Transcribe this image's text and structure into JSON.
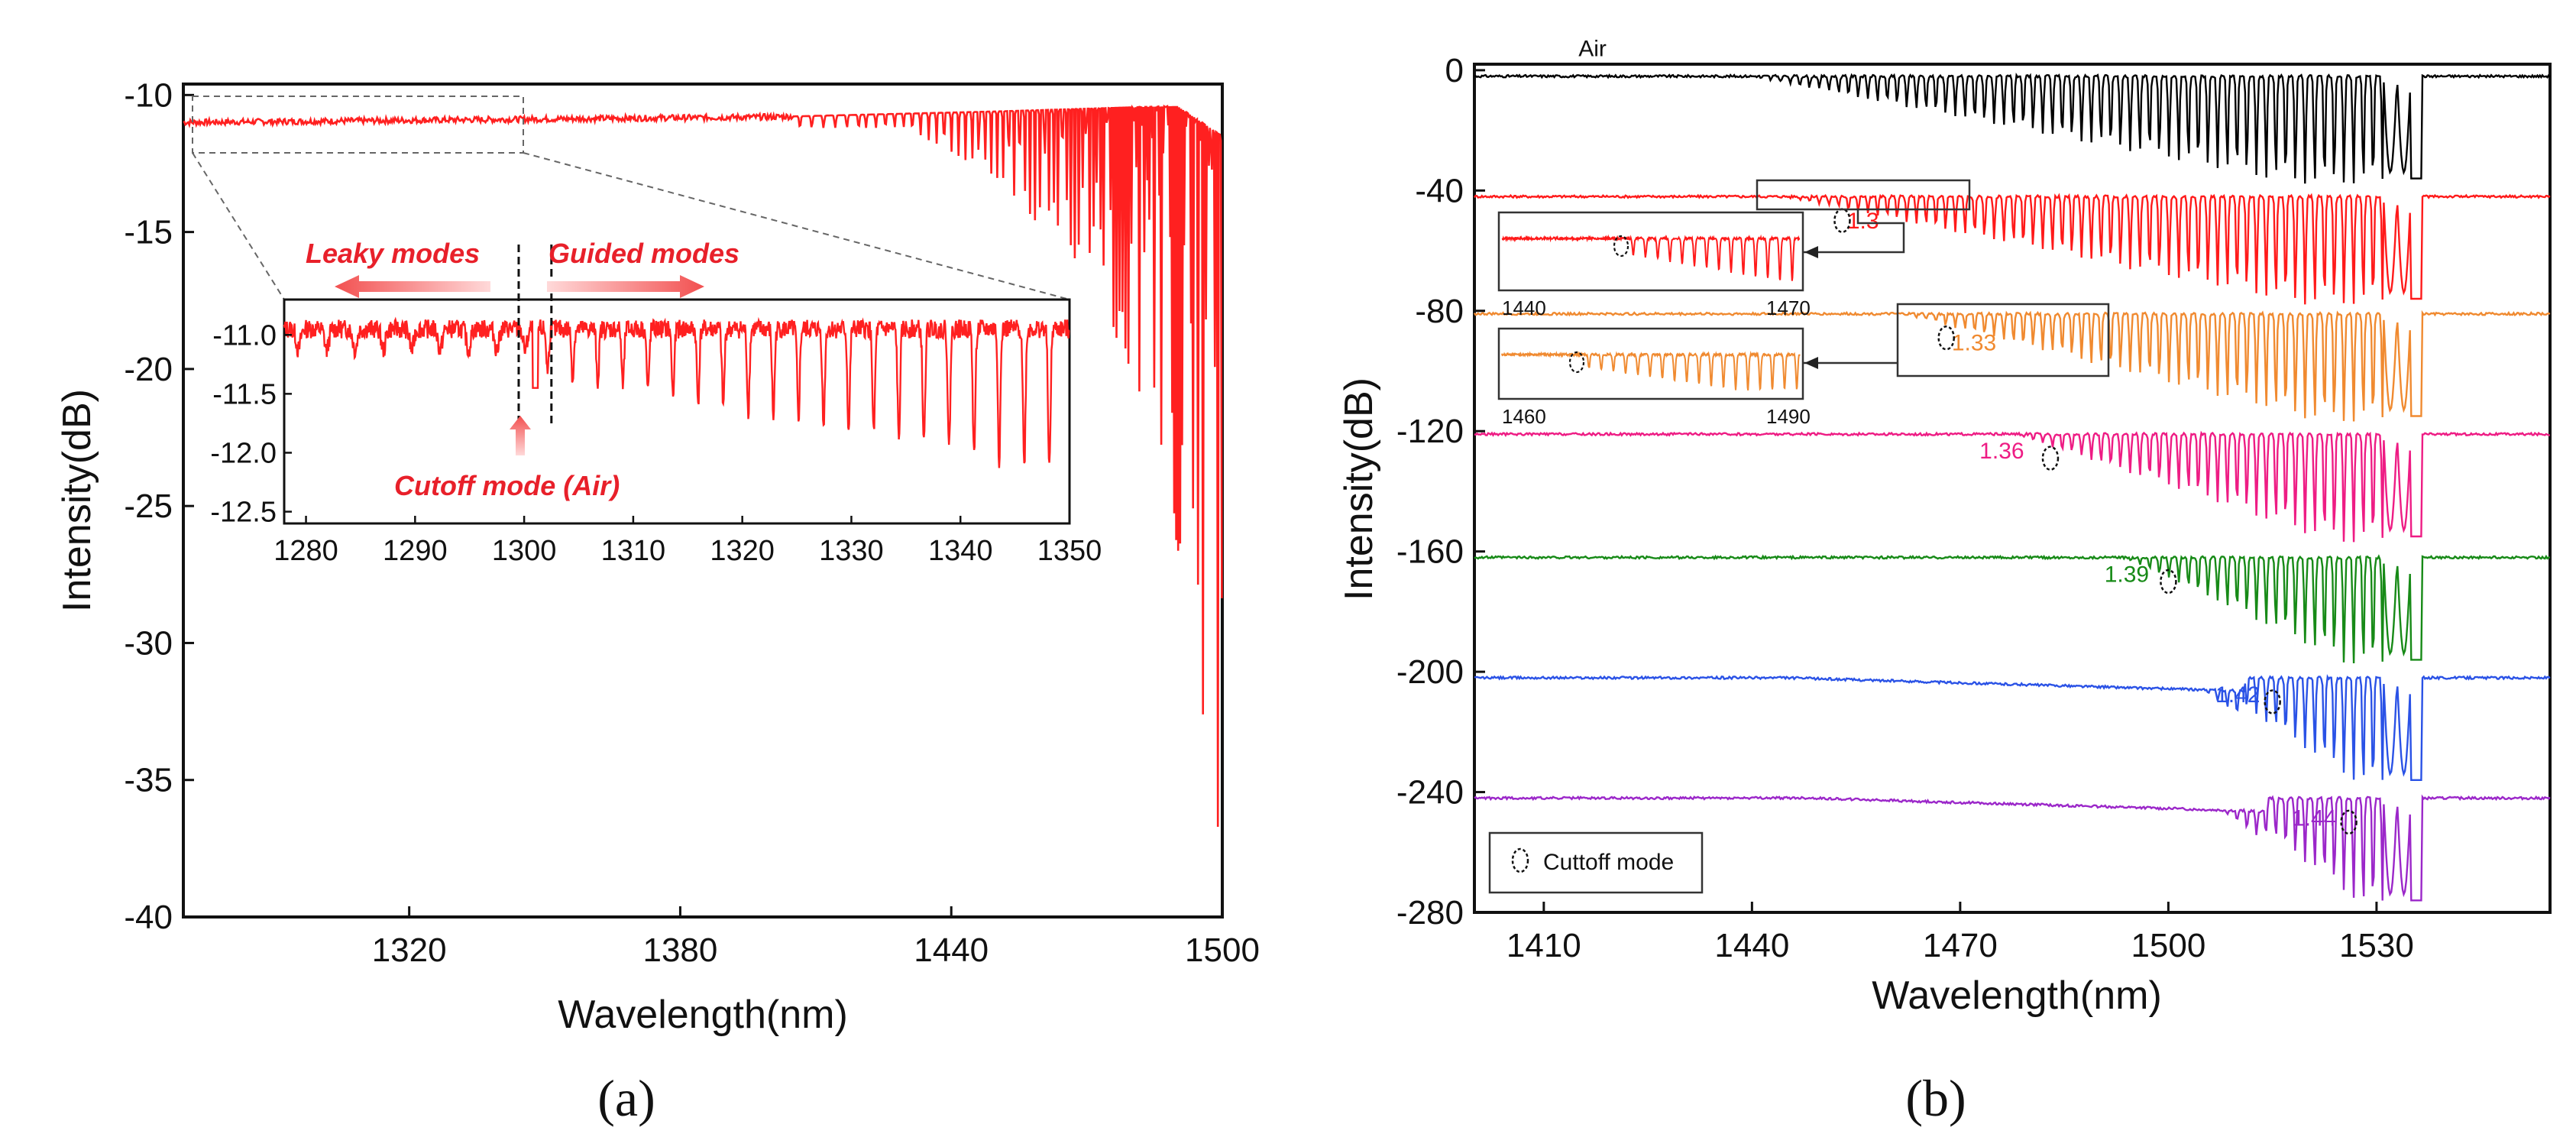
{
  "chart_data": [
    {
      "panel": "(a)",
      "type": "line",
      "xlabel": "Wavelength(nm)",
      "ylabel": "Intensity(dB)",
      "xlim": [
        1270,
        1500
      ],
      "ylim": [
        -40,
        -9.6
      ],
      "xticks": [
        1320,
        1380,
        1440,
        1500
      ],
      "yticks": [
        -10,
        -15,
        -20,
        -25,
        -30,
        -35,
        -40
      ],
      "series": [
        {
          "name": "Air",
          "color": "#ff2020",
          "description_points": [
            {
              "x": 1270,
              "y": -11.0
            },
            {
              "x": 1400,
              "y": -10.8
            },
            {
              "x": 1450,
              "y": -10.6
            },
            {
              "x": 1490,
              "y": -10.4
            },
            {
              "x": 1500,
              "y": -11.5
            }
          ],
          "dip_min_points": [
            {
              "x": 1430,
              "y": -11.2
            },
            {
              "x": 1450,
              "y": -13.0
            },
            {
              "x": 1470,
              "y": -17.0
            },
            {
              "x": 1485,
              "y": -22.0
            },
            {
              "x": 1494,
              "y": -30.0
            },
            {
              "x": 1499,
              "y": -38.2
            }
          ]
        }
      ],
      "inset": {
        "xlim": [
          1278,
          1350
        ],
        "ylim": [
          -12.6,
          -10.7
        ],
        "xticks": [
          1280,
          1290,
          1300,
          1310,
          1320,
          1330,
          1340,
          1350
        ],
        "yticks": [
          "-11.0",
          "-11.5",
          "-12.0",
          "-12.5"
        ],
        "cutoff_x": 1301,
        "cutoff_bounds": [
          1299.5,
          1302.5
        ]
      },
      "annotations": {
        "leaky": "Leaky modes",
        "guided": "Guided modes",
        "cutoff": "Cutoff mode (Air)"
      }
    },
    {
      "panel": "(b)",
      "type": "line",
      "xlabel": "Wavelength(nm)",
      "ylabel": "Intensity(dB)",
      "xlim": [
        1400,
        1555
      ],
      "ylim": [
        -280,
        2
      ],
      "xticks": [
        1410,
        1440,
        1470,
        1500,
        1530
      ],
      "yticks": [
        0,
        -40,
        -80,
        -120,
        -160,
        -200,
        -240,
        -280
      ],
      "series": [
        {
          "name": "Air",
          "label": "Air",
          "color": "#000000",
          "offset": -2,
          "cutoff": null,
          "onset": 1440,
          "depth": 36
        },
        {
          "name": "1.3",
          "label": "1.3",
          "color": "#ff1a1a",
          "offset": -42,
          "cutoff": 1453,
          "onset": 1445,
          "depth": 36
        },
        {
          "name": "1.33",
          "label": "1.33",
          "color": "#f08a30",
          "offset": -81,
          "cutoff": 1468,
          "onset": 1462,
          "depth": 36
        },
        {
          "name": "1.36",
          "label": "1.36",
          "color": "#ee1c84",
          "offset": -121,
          "cutoff": 1483,
          "onset": 1478,
          "depth": 36
        },
        {
          "name": "1.39",
          "label": "1.39",
          "color": "#178a17",
          "offset": -162,
          "cutoff": 1500,
          "onset": 1494,
          "depth": 36
        },
        {
          "name": "1.42",
          "label": "1.42",
          "color": "#2a52e6",
          "offset": -202,
          "cutoff": 1515,
          "onset": 1505,
          "depth": 36
        },
        {
          "name": "1.44",
          "label": "1.44",
          "color": "#9b27c9",
          "offset": -242,
          "cutoff": 1526,
          "onset": 1508,
          "depth": 36
        }
      ],
      "insets": [
        {
          "xlim": [
            1440,
            1470
          ],
          "xticks": [
            "1440",
            "1470"
          ],
          "color": "#ff1a1a"
        },
        {
          "xlim": [
            1460,
            1490
          ],
          "xticks": [
            "1460",
            "1490"
          ],
          "color": "#f08a30"
        }
      ],
      "legend": {
        "label": "Cuttoff mode",
        "placement": "bottom-left"
      }
    }
  ]
}
